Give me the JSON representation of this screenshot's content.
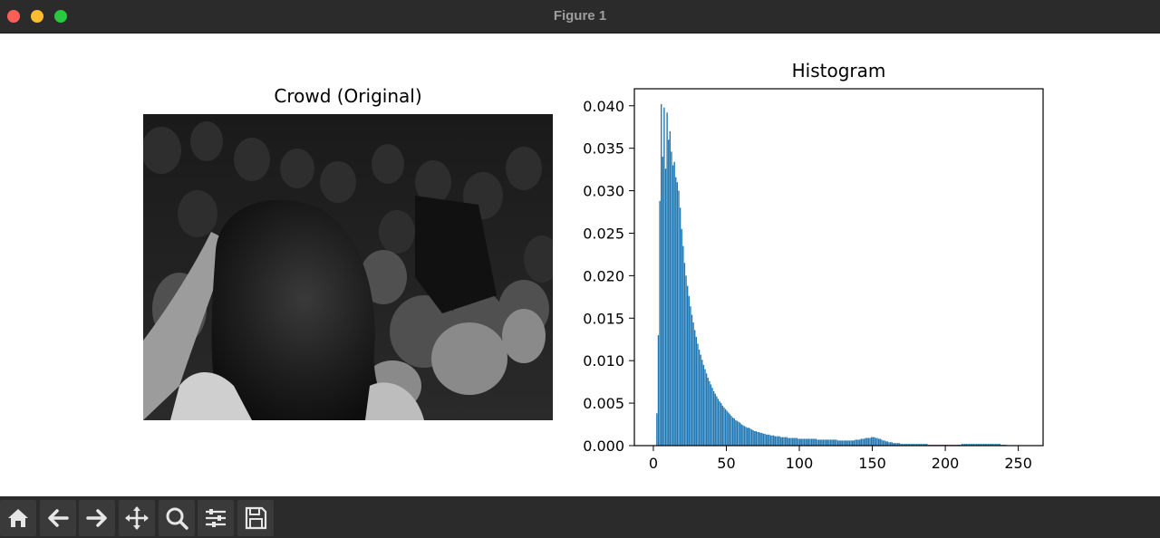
{
  "window": {
    "title": "Figure 1"
  },
  "left_axes": {
    "title": "Crowd (Original)"
  },
  "right_axes": {
    "title": "Histogram"
  },
  "toolbar": {
    "buttons": [
      {
        "name": "home-button",
        "icon": "home-icon"
      },
      {
        "name": "back-button",
        "icon": "arrow-left-icon"
      },
      {
        "name": "forward-button",
        "icon": "arrow-right-icon"
      },
      {
        "name": "pan-button",
        "icon": "move-icon"
      },
      {
        "name": "zoom-button",
        "icon": "magnifier-icon"
      },
      {
        "name": "configure-subplots-button",
        "icon": "sliders-icon"
      },
      {
        "name": "save-button",
        "icon": "floppy-disk-icon"
      }
    ]
  },
  "chart_data": {
    "type": "bar",
    "title": "Histogram",
    "xlabel": "",
    "ylabel": "",
    "xlim": [
      -13,
      267
    ],
    "ylim": [
      0,
      0.042
    ],
    "xticks": [
      0,
      50,
      100,
      150,
      200,
      250
    ],
    "xtick_labels": [
      "0",
      "50",
      "100",
      "150",
      "200",
      "250"
    ],
    "yticks": [
      0.0,
      0.005,
      0.01,
      0.015,
      0.02,
      0.025,
      0.03,
      0.035,
      0.04
    ],
    "ytick_labels": [
      "0.000",
      "0.005",
      "0.010",
      "0.015",
      "0.020",
      "0.025",
      "0.030",
      "0.035",
      "0.040"
    ],
    "bar_color": "#1f77b4",
    "bins_start": 0,
    "bin_width": 1,
    "values": [
      0,
      0,
      0.0038,
      0.013,
      0.0288,
      0.0402,
      0.034,
      0.0398,
      0.0326,
      0.0392,
      0.036,
      0.037,
      0.0346,
      0.033,
      0.0334,
      0.0316,
      0.031,
      0.03,
      0.028,
      0.0255,
      0.0235,
      0.0215,
      0.02,
      0.0188,
      0.0176,
      0.0164,
      0.0154,
      0.0145,
      0.0136,
      0.0128,
      0.012,
      0.0113,
      0.0107,
      0.0101,
      0.0095,
      0.009,
      0.0085,
      0.008,
      0.0076,
      0.0072,
      0.0068,
      0.0064,
      0.0061,
      0.0058,
      0.0055,
      0.0052,
      0.005,
      0.0047,
      0.0045,
      0.0043,
      0.0041,
      0.0039,
      0.0037,
      0.0035,
      0.0033,
      0.0032,
      0.003,
      0.0029,
      0.0028,
      0.0027,
      0.0025,
      0.0024,
      0.0023,
      0.0022,
      0.0021,
      0.0021,
      0.002,
      0.0019,
      0.0018,
      0.0017,
      0.0017,
      0.0016,
      0.0016,
      0.0015,
      0.0015,
      0.0014,
      0.0014,
      0.0013,
      0.0013,
      0.0013,
      0.0012,
      0.0012,
      0.0012,
      0.0011,
      0.0011,
      0.0011,
      0.0011,
      0.001,
      0.001,
      0.001,
      0.001,
      0.001,
      0.0009,
      0.0009,
      0.0009,
      0.0009,
      0.0009,
      0.0009,
      0.0009,
      0.0008,
      0.0008,
      0.0008,
      0.0008,
      0.0008,
      0.0008,
      0.0008,
      0.0008,
      0.0008,
      0.0008,
      0.0008,
      0.0008,
      0.0008,
      0.0007,
      0.0007,
      0.0007,
      0.0007,
      0.0007,
      0.0007,
      0.0007,
      0.0007,
      0.0007,
      0.0007,
      0.0007,
      0.0007,
      0.0007,
      0.0007,
      0.0006,
      0.0006,
      0.0006,
      0.0006,
      0.0006,
      0.0006,
      0.0006,
      0.0006,
      0.0006,
      0.0006,
      0.0006,
      0.0006,
      0.0007,
      0.0007,
      0.0007,
      0.0007,
      0.0008,
      0.0008,
      0.0008,
      0.0009,
      0.0009,
      0.0009,
      0.0009,
      0.001,
      0.001,
      0.001,
      0.0009,
      0.0009,
      0.0008,
      0.0008,
      0.0007,
      0.0006,
      0.0006,
      0.0005,
      0.0005,
      0.0004,
      0.0004,
      0.0004,
      0.0003,
      0.0003,
      0.0003,
      0.0003,
      0.0003,
      0.0002,
      0.0002,
      0.0002,
      0.0002,
      0.0002,
      0.0002,
      0.0002,
      0.0002,
      0.0002,
      0.0002,
      0.0002,
      0.0002,
      0.0002,
      0.0002,
      0.0002,
      0.0002,
      0.0002,
      0.0002,
      0.0002,
      0.0001,
      0.0001,
      0.0001,
      0.0001,
      0.0001,
      0.0001,
      0.0001,
      0.0001,
      0.0001,
      0.0001,
      0.0001,
      0.0001,
      0.0001,
      0.0001,
      0.0001,
      0.0001,
      0.0001,
      0.0001,
      0.0001,
      0.0001,
      0.0001,
      0.0001,
      0.0001,
      0.0002,
      0.0002,
      0.0002,
      0.0002,
      0.0002,
      0.0002,
      0.0002,
      0.0002,
      0.0002,
      0.0002,
      0.0002,
      0.0002,
      0.0002,
      0.0002,
      0.0002,
      0.0002,
      0.0002,
      0.0002,
      0.0002,
      0.0002,
      0.0002,
      0.0002,
      0.0002,
      0.0002,
      0.0002,
      0.0002,
      0.0002,
      0.0001,
      0.0001,
      0.0001,
      0.0001,
      0,
      0,
      0,
      0,
      0
    ]
  }
}
